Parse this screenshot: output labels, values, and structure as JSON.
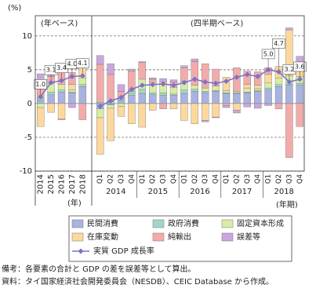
{
  "chart_data": {
    "type": "stacked-bar-line",
    "y_label": "(%)",
    "annotations": [
      "(年ベース)",
      "(四半期ベース)"
    ],
    "x_label_annual": "(年)",
    "x_label_quarterly": "(年期)",
    "categories": [
      "2014",
      "2015",
      "2016",
      "2017",
      "2018",
      "Q1",
      "Q2",
      "Q3",
      "Q4",
      "Q1",
      "Q2",
      "Q3",
      "Q4",
      "Q1",
      "Q2",
      "Q3",
      "Q4",
      "Q1",
      "Q2",
      "Q3",
      "Q4",
      "Q1",
      "Q2",
      "Q3",
      "Q4"
    ],
    "quarter_years": [
      "2014",
      "2015",
      "2016",
      "2017",
      "2018"
    ],
    "ylim": [
      -10,
      13
    ],
    "yticks": [
      -10,
      -5,
      0,
      5,
      10
    ],
    "grid": true,
    "series": [
      {
        "name": "民間消費",
        "color": "#a9b3e2",
        "values": [
          0.5,
          1.3,
          1.7,
          1.6,
          2.5,
          -0.8,
          -0.2,
          0.5,
          1.2,
          1.5,
          1.3,
          1.2,
          1.2,
          1.5,
          1.8,
          1.6,
          1.8,
          1.5,
          1.5,
          1.6,
          1.8,
          2.0,
          2.5,
          2.7,
          2.7
        ]
      },
      {
        "name": "政府消費",
        "color": "#9fd8c9",
        "values": [
          0.3,
          0.4,
          0.3,
          0.1,
          0.3,
          0.2,
          0.3,
          0.3,
          0.4,
          0.6,
          0.3,
          0.4,
          0.2,
          0.5,
          0.3,
          0.2,
          0.1,
          0.1,
          0.1,
          0.1,
          0.1,
          0.3,
          0.3,
          0.2,
          0.3
        ]
      },
      {
        "name": "固定資本形成",
        "color": "#d9eca3",
        "values": [
          -0.6,
          1.3,
          0.8,
          0.3,
          1.0,
          -1.3,
          -0.5,
          -0.4,
          0.2,
          1.5,
          1.5,
          1.3,
          1.0,
          1.3,
          0.6,
          0.5,
          0.7,
          0.3,
          0.2,
          0.6,
          0.3,
          0.8,
          1.0,
          1.2,
          1.0
        ]
      },
      {
        "name": "在庫変動",
        "color": "#fdd89c",
        "values": [
          -2.8,
          -1.3,
          -2.3,
          0.8,
          2.4,
          -5.4,
          -4.8,
          -1.5,
          -3.0,
          -3.5,
          -1.0,
          0.3,
          -0.8,
          -2.5,
          -3.0,
          -2.5,
          -2.0,
          2.0,
          -1.0,
          0.5,
          0.5,
          1.2,
          1.7,
          6.8,
          2.0
        ]
      },
      {
        "name": "純輸出",
        "color": "#f3abaa",
        "values": [
          2.5,
          1.0,
          3.0,
          1.8,
          -2.4,
          5.6,
          4.0,
          1.0,
          3.0,
          2.5,
          0.5,
          -0.8,
          0.8,
          2.0,
          3.5,
          3.6,
          2.5,
          -0.3,
          3.5,
          2.0,
          2.0,
          1.0,
          -0.8,
          -8.0,
          -3.4
        ]
      },
      {
        "name": "誤差等",
        "color": "#caa6dd",
        "values": [
          1.1,
          0.4,
          -0.1,
          -0.6,
          0.3,
          1.3,
          1.6,
          1.0,
          0.3,
          0.1,
          0.2,
          0.5,
          0.3,
          0.3,
          0.4,
          -0.2,
          -0.1,
          -0.3,
          -0.4,
          -0.5,
          -0.7,
          -0.3,
          0.0,
          0.3,
          1.0
        ]
      }
    ],
    "line": {
      "name": "実質 GDP 成長率",
      "color": "#7d72c6",
      "values": [
        1.0,
        3.1,
        3.4,
        4.0,
        4.1,
        -0.4,
        0.4,
        0.9,
        2.1,
        2.7,
        2.8,
        2.9,
        2.7,
        3.1,
        3.6,
        3.2,
        3.0,
        3.3,
        3.9,
        4.3,
        4.0,
        5.0,
        4.7,
        3.2,
        3.6
      ],
      "value_labels": [
        "1.0",
        "3.1",
        "3.4",
        "4.0",
        "4.1",
        null,
        null,
        null,
        null,
        null,
        null,
        null,
        null,
        null,
        null,
        null,
        null,
        null,
        null,
        null,
        null,
        "5.0",
        "4.7",
        "3.2",
        "3.6"
      ]
    },
    "notes": [
      "備考：各要素の合計と GDP の差を誤差等として算出。",
      "資料：タイ国家経済社会開発委員会（NESDB）、CEIC Database から作成。"
    ]
  }
}
